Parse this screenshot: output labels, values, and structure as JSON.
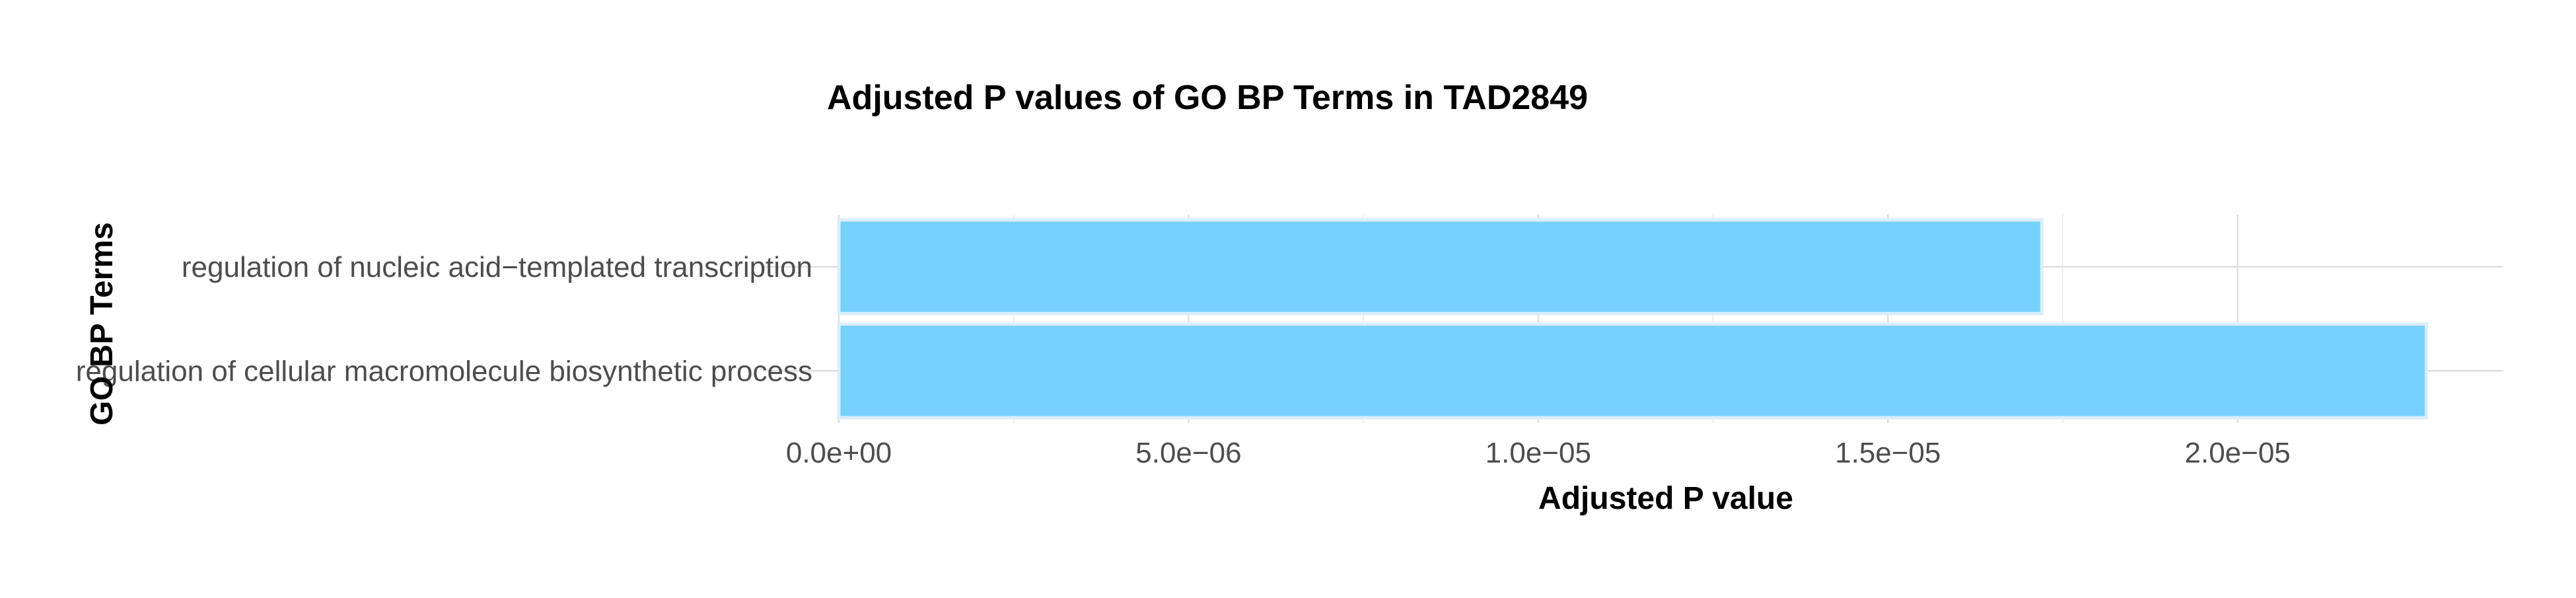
{
  "chart_data": {
    "type": "bar",
    "orientation": "horizontal",
    "title": "Adjusted P values of GO BP Terms in TAD2849",
    "xlabel": "Adjusted P value",
    "ylabel": "GO BP Terms",
    "categories": [
      "regulation of nucleic acid−templated transcription",
      "regulation of cellular macromolecule biosynthetic process"
    ],
    "values": [
      1.72e-05,
      2.27e-05
    ],
    "xlim": [
      0,
      2.38e-05
    ],
    "x_ticks": [
      0,
      5e-06,
      1e-05,
      1.5e-05,
      2e-05
    ],
    "x_tick_labels": [
      "0.0e+00",
      "5.0e−06",
      "1.0e−05",
      "1.5e−05",
      "2.0e−05"
    ],
    "grid": true,
    "legend": "none",
    "bar_color": "#76d1fd",
    "bar_outline_color": "#dceefa"
  }
}
